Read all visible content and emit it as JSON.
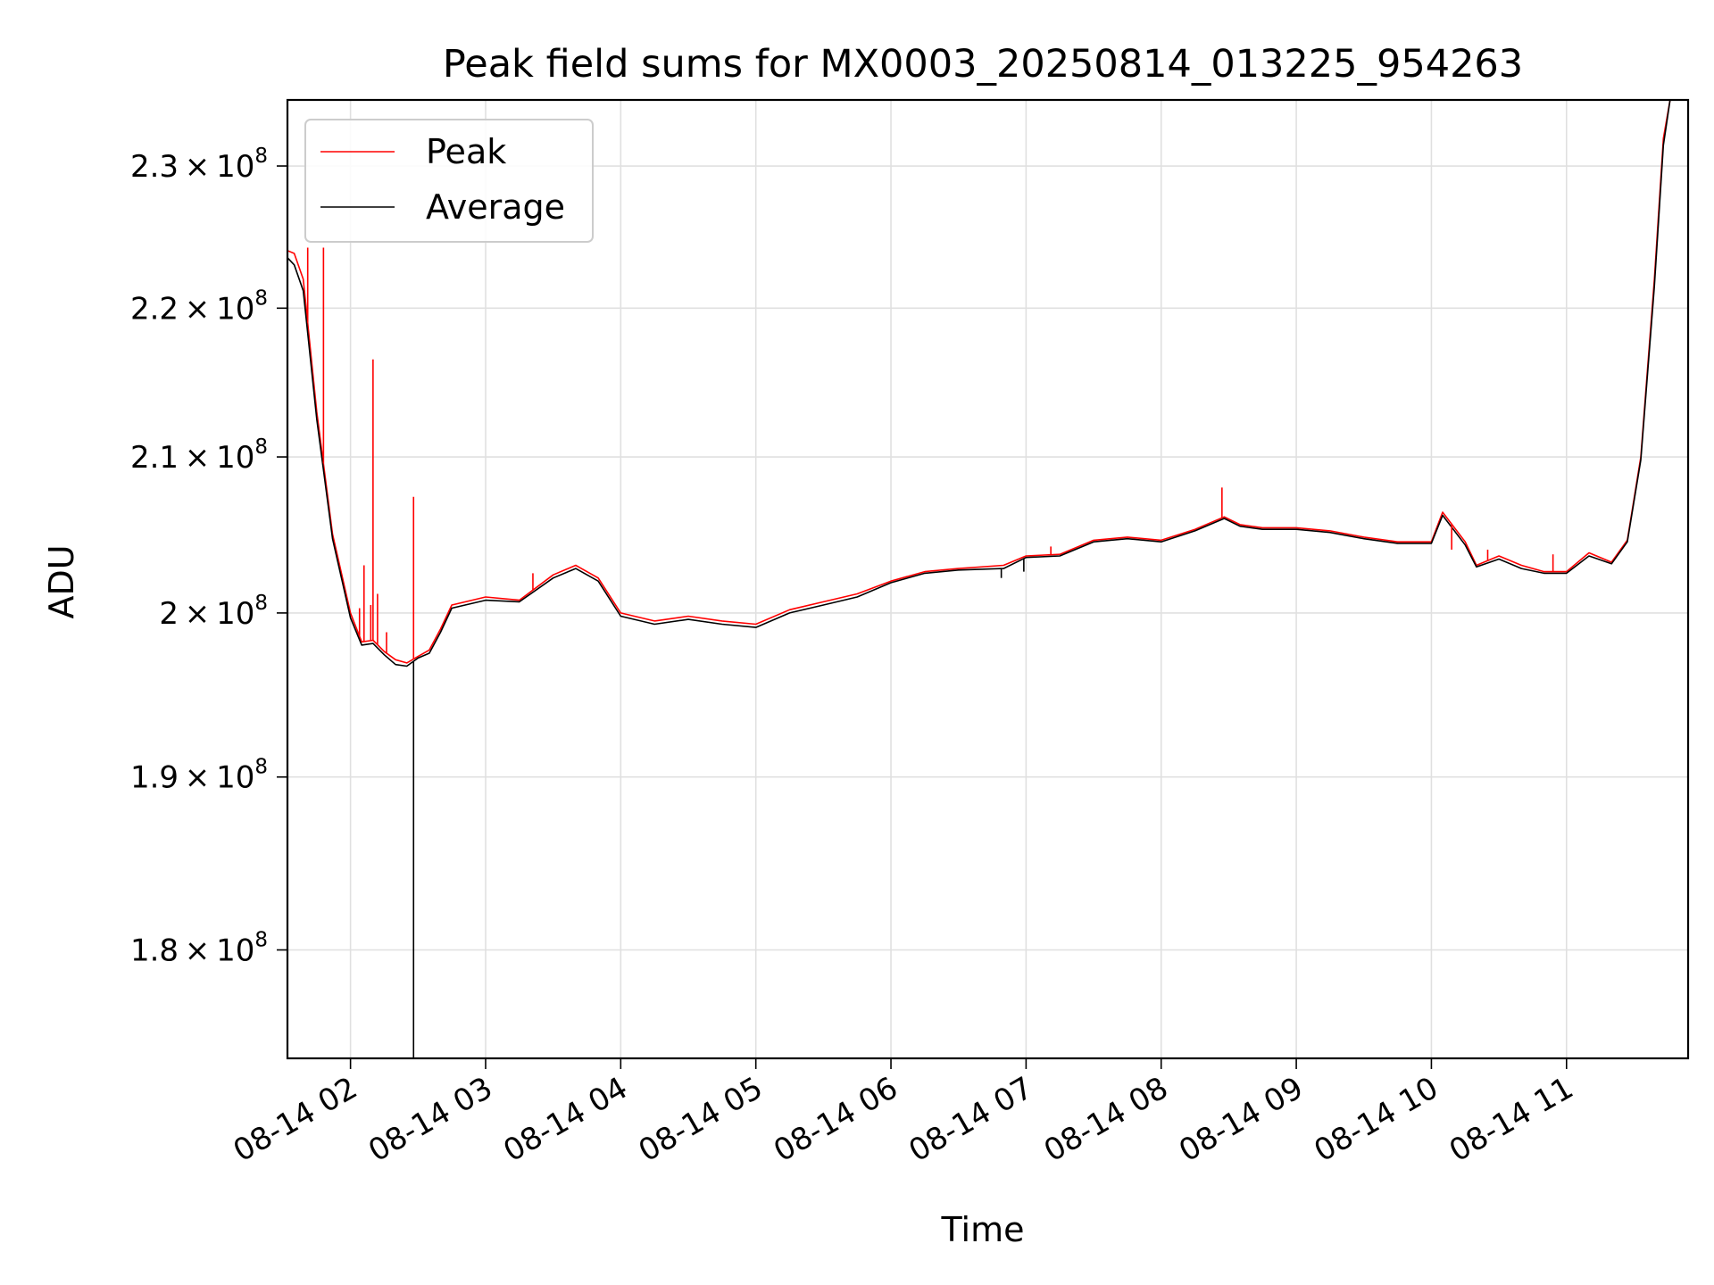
{
  "chart_data": {
    "type": "line",
    "title": "Peak field sums for MX0003_20250814_013225_954263",
    "xlabel": "Time",
    "ylabel": "ADU",
    "yscale": "log",
    "xlim": [
      "2025-08-14 01:32",
      "2025-08-14 11:54"
    ],
    "ylim": [
      174000000,
      234800000
    ],
    "grid": true,
    "legend_position": "top-left",
    "x_ticks": [
      {
        "t": "2025-08-14 02:00",
        "label": "08-14 02"
      },
      {
        "t": "2025-08-14 03:00",
        "label": "08-14 03"
      },
      {
        "t": "2025-08-14 04:00",
        "label": "08-14 04"
      },
      {
        "t": "2025-08-14 05:00",
        "label": "08-14 05"
      },
      {
        "t": "2025-08-14 06:00",
        "label": "08-14 06"
      },
      {
        "t": "2025-08-14 07:00",
        "label": "08-14 07"
      },
      {
        "t": "2025-08-14 08:00",
        "label": "08-14 08"
      },
      {
        "t": "2025-08-14 09:00",
        "label": "08-14 09"
      },
      {
        "t": "2025-08-14 10:00",
        "label": "08-14 10"
      },
      {
        "t": "2025-08-14 11:00",
        "label": "08-14 11"
      }
    ],
    "y_ticks": [
      {
        "v": 180000000,
        "mantissa": "1.8",
        "exp": "8"
      },
      {
        "v": 190000000,
        "mantissa": "1.9",
        "exp": "8"
      },
      {
        "v": 200000000,
        "mantissa": "2",
        "exp": "8"
      },
      {
        "v": 210000000,
        "mantissa": "2.1",
        "exp": "8"
      },
      {
        "v": 220000000,
        "mantissa": "2.2",
        "exp": "8"
      },
      {
        "v": 230000000,
        "mantissa": "2.3",
        "exp": "8"
      }
    ],
    "series": [
      {
        "name": "Peak",
        "color": "#ff0000",
        "x": [
          "2025-08-14 01:32",
          "2025-08-14 01:35",
          "2025-08-14 01:39",
          "2025-08-14 01:45",
          "2025-08-14 01:52",
          "2025-08-14 02:00",
          "2025-08-14 02:05",
          "2025-08-14 02:10",
          "2025-08-14 02:15",
          "2025-08-14 02:20",
          "2025-08-14 02:25",
          "2025-08-14 02:30",
          "2025-08-14 02:35",
          "2025-08-14 02:40",
          "2025-08-14 02:45",
          "2025-08-14 03:00",
          "2025-08-14 03:15",
          "2025-08-14 03:30",
          "2025-08-14 03:40",
          "2025-08-14 03:50",
          "2025-08-14 04:00",
          "2025-08-14 04:15",
          "2025-08-14 04:30",
          "2025-08-14 04:45",
          "2025-08-14 05:00",
          "2025-08-14 05:15",
          "2025-08-14 05:30",
          "2025-08-14 05:45",
          "2025-08-14 06:00",
          "2025-08-14 06:15",
          "2025-08-14 06:30",
          "2025-08-14 06:50",
          "2025-08-14 07:00",
          "2025-08-14 07:15",
          "2025-08-14 07:30",
          "2025-08-14 07:45",
          "2025-08-14 08:00",
          "2025-08-14 08:15",
          "2025-08-14 08:28",
          "2025-08-14 08:35",
          "2025-08-14 08:45",
          "2025-08-14 09:00",
          "2025-08-14 09:15",
          "2025-08-14 09:30",
          "2025-08-14 09:45",
          "2025-08-14 10:00",
          "2025-08-14 10:05",
          "2025-08-14 10:15",
          "2025-08-14 10:20",
          "2025-08-14 10:30",
          "2025-08-14 10:40",
          "2025-08-14 10:50",
          "2025-08-14 11:00",
          "2025-08-14 11:10",
          "2025-08-14 11:20",
          "2025-08-14 11:27",
          "2025-08-14 11:33",
          "2025-08-14 11:39",
          "2025-08-14 11:43",
          "2025-08-14 11:46"
        ],
        "y": [
          224000000,
          223800000,
          222000000,
          213000000,
          205000000,
          200000000,
          198200000,
          198300000,
          197600000,
          197100000,
          196900000,
          197300000,
          197700000,
          199000000,
          200500000,
          201000000,
          200800000,
          202400000,
          203000000,
          202200000,
          200000000,
          199500000,
          199800000,
          199500000,
          199300000,
          200200000,
          200700000,
          201200000,
          202000000,
          202600000,
          202800000,
          203000000,
          203600000,
          203700000,
          204600000,
          204800000,
          204600000,
          205300000,
          206100000,
          205600000,
          205400000,
          205400000,
          205200000,
          204800000,
          204500000,
          204500000,
          206400000,
          204500000,
          203000000,
          203600000,
          203000000,
          202600000,
          202600000,
          203800000,
          203200000,
          204600000,
          210000000,
          222000000,
          232000000,
          234800000
        ]
      },
      {
        "name": "Average",
        "color": "#000000",
        "x": [
          "2025-08-14 01:32",
          "2025-08-14 01:35",
          "2025-08-14 01:39",
          "2025-08-14 01:45",
          "2025-08-14 01:52",
          "2025-08-14 02:00",
          "2025-08-14 02:05",
          "2025-08-14 02:10",
          "2025-08-14 02:15",
          "2025-08-14 02:20",
          "2025-08-14 02:25",
          "2025-08-14 02:30",
          "2025-08-14 02:35",
          "2025-08-14 02:40",
          "2025-08-14 02:45",
          "2025-08-14 03:00",
          "2025-08-14 03:15",
          "2025-08-14 03:30",
          "2025-08-14 03:40",
          "2025-08-14 03:50",
          "2025-08-14 04:00",
          "2025-08-14 04:15",
          "2025-08-14 04:30",
          "2025-08-14 04:45",
          "2025-08-14 05:00",
          "2025-08-14 05:15",
          "2025-08-14 05:30",
          "2025-08-14 05:45",
          "2025-08-14 06:00",
          "2025-08-14 06:15",
          "2025-08-14 06:30",
          "2025-08-14 06:50",
          "2025-08-14 07:00",
          "2025-08-14 07:15",
          "2025-08-14 07:30",
          "2025-08-14 07:45",
          "2025-08-14 08:00",
          "2025-08-14 08:15",
          "2025-08-14 08:28",
          "2025-08-14 08:35",
          "2025-08-14 08:45",
          "2025-08-14 09:00",
          "2025-08-14 09:15",
          "2025-08-14 09:30",
          "2025-08-14 09:45",
          "2025-08-14 10:00",
          "2025-08-14 10:05",
          "2025-08-14 10:15",
          "2025-08-14 10:20",
          "2025-08-14 10:30",
          "2025-08-14 10:40",
          "2025-08-14 10:50",
          "2025-08-14 11:00",
          "2025-08-14 11:10",
          "2025-08-14 11:20",
          "2025-08-14 11:27",
          "2025-08-14 11:33",
          "2025-08-14 11:39",
          "2025-08-14 11:43",
          "2025-08-14 11:46"
        ],
        "y": [
          223500000,
          223000000,
          221200000,
          212500000,
          204700000,
          199700000,
          198000000,
          198100000,
          197400000,
          196800000,
          196700000,
          197200000,
          197500000,
          198800000,
          200300000,
          200800000,
          200700000,
          202200000,
          202800000,
          202000000,
          199800000,
          199300000,
          199600000,
          199300000,
          199100000,
          200000000,
          200500000,
          201000000,
          201900000,
          202500000,
          202700000,
          202800000,
          203500000,
          203600000,
          204500000,
          204700000,
          204500000,
          205200000,
          206000000,
          205500000,
          205300000,
          205300000,
          205100000,
          204700000,
          204400000,
          204400000,
          206200000,
          204300000,
          202900000,
          203400000,
          202800000,
          202500000,
          202500000,
          203600000,
          203100000,
          204500000,
          209800000,
          221500000,
          231500000,
          234800000
        ]
      }
    ],
    "peak_spikes": [
      {
        "x": "2025-08-14 01:41",
        "y": 224200000
      },
      {
        "x": "2025-08-14 01:48",
        "y": 224200000
      },
      {
        "x": "2025-08-14 02:04",
        "y": 200300000
      },
      {
        "x": "2025-08-14 02:06",
        "y": 203000000
      },
      {
        "x": "2025-08-14 02:09",
        "y": 200500000
      },
      {
        "x": "2025-08-14 02:10",
        "y": 216500000
      },
      {
        "x": "2025-08-14 02:12",
        "y": 201200000
      },
      {
        "x": "2025-08-14 02:16",
        "y": 198800000
      },
      {
        "x": "2025-08-14 02:28",
        "y": 207400000
      },
      {
        "x": "2025-08-14 03:21",
        "y": 202500000
      },
      {
        "x": "2025-08-14 07:11",
        "y": 204200000
      },
      {
        "x": "2025-08-14 08:27",
        "y": 208000000
      },
      {
        "x": "2025-08-14 10:09",
        "y": 204000000
      },
      {
        "x": "2025-08-14 10:25",
        "y": 204000000
      },
      {
        "x": "2025-08-14 10:54",
        "y": 203700000
      }
    ],
    "average_dips": [
      {
        "x": "2025-08-14 02:28",
        "y": 174000000
      },
      {
        "x": "2025-08-14 06:49",
        "y": 202200000
      },
      {
        "x": "2025-08-14 06:59",
        "y": 202600000
      }
    ]
  }
}
